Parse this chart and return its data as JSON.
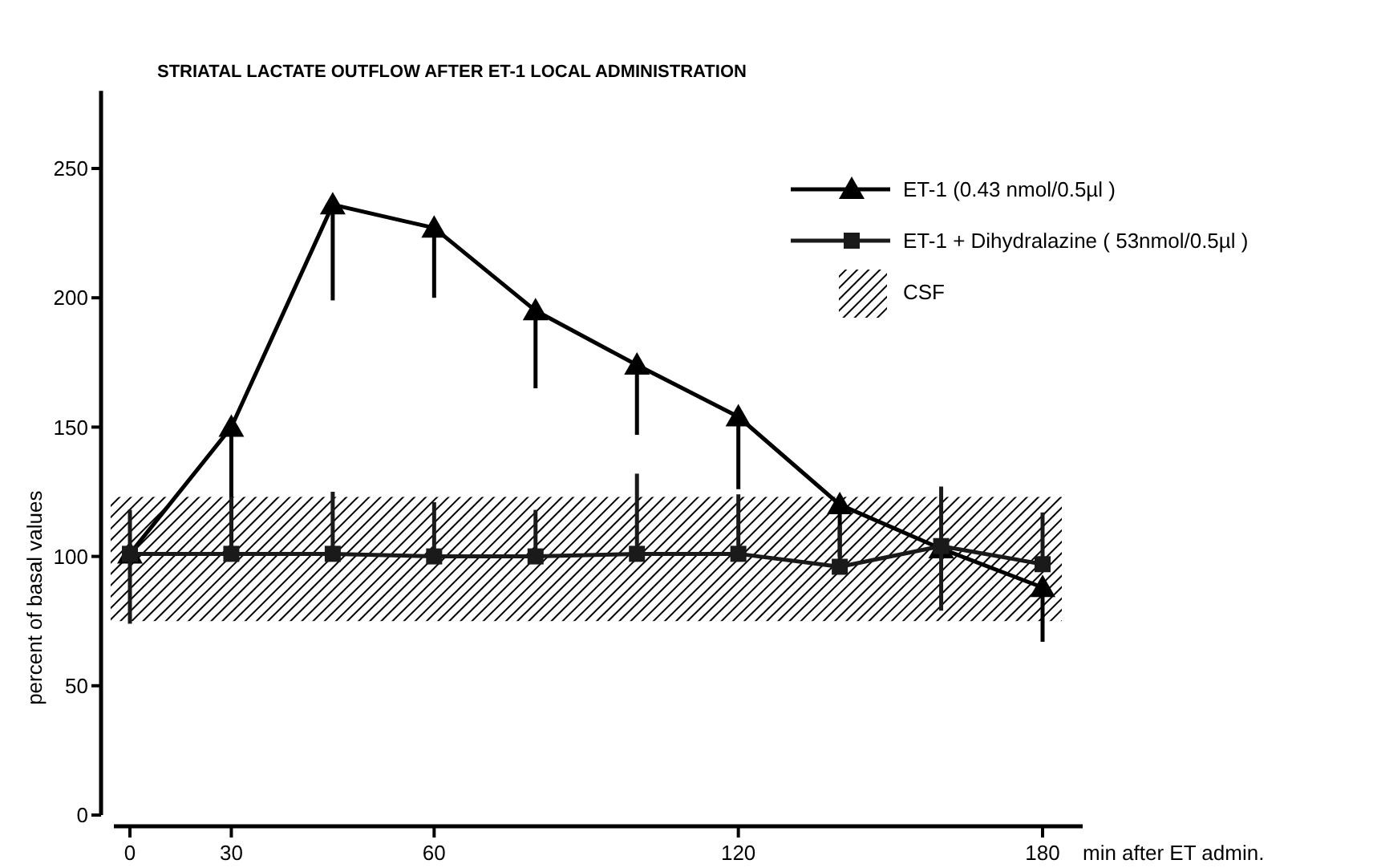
{
  "chart_data": {
    "type": "line",
    "title": "STRIATAL LACTATE OUTFLOW AFTER ET-1 LOCAL ADMINISTRATION",
    "xlabel": "min after ET admin.",
    "ylabel": "percent of basal values",
    "categories": [
      "0",
      "30",
      null,
      "60",
      null,
      null,
      "120",
      null,
      null,
      "180"
    ],
    "series": [
      {
        "name": "ET-1 (0.43 nmol/0.5µl )",
        "color": "#000000",
        "marker": "triangle",
        "values": [
          101,
          150,
          236,
          227,
          195,
          174,
          154,
          120,
          103,
          88
        ],
        "errors": [
          null,
          [
            105,
            150
          ],
          [
            199,
            236
          ],
          [
            200,
            227
          ],
          [
            165,
            195
          ],
          [
            147,
            174
          ],
          [
            126,
            154
          ],
          [
            100,
            120
          ],
          null,
          [
            67,
            88
          ]
        ]
      },
      {
        "name": "ET-1 + Dihydralazine ( 53nmol/0.5µl )",
        "color": "#1a1a1a",
        "marker": "square",
        "values": [
          101,
          101,
          101,
          100,
          100,
          101,
          101,
          96,
          104,
          97
        ],
        "errors": [
          [
            74,
            118
          ],
          [
            101,
            123
          ],
          [
            101,
            125
          ],
          [
            100,
            121
          ],
          [
            100,
            118
          ],
          [
            101,
            132
          ],
          [
            101,
            124
          ],
          [
            96,
            112
          ],
          [
            79,
            127
          ],
          [
            97,
            117
          ]
        ]
      }
    ],
    "bands": [
      {
        "axis": "y",
        "from": 75,
        "to": 123,
        "label": "CSF",
        "color": "#000000"
      }
    ],
    "ylim": [
      0,
      280
    ],
    "yticks": [
      0,
      50,
      100,
      150,
      200,
      250
    ],
    "legend": "top right",
    "line_style": "solid"
  }
}
